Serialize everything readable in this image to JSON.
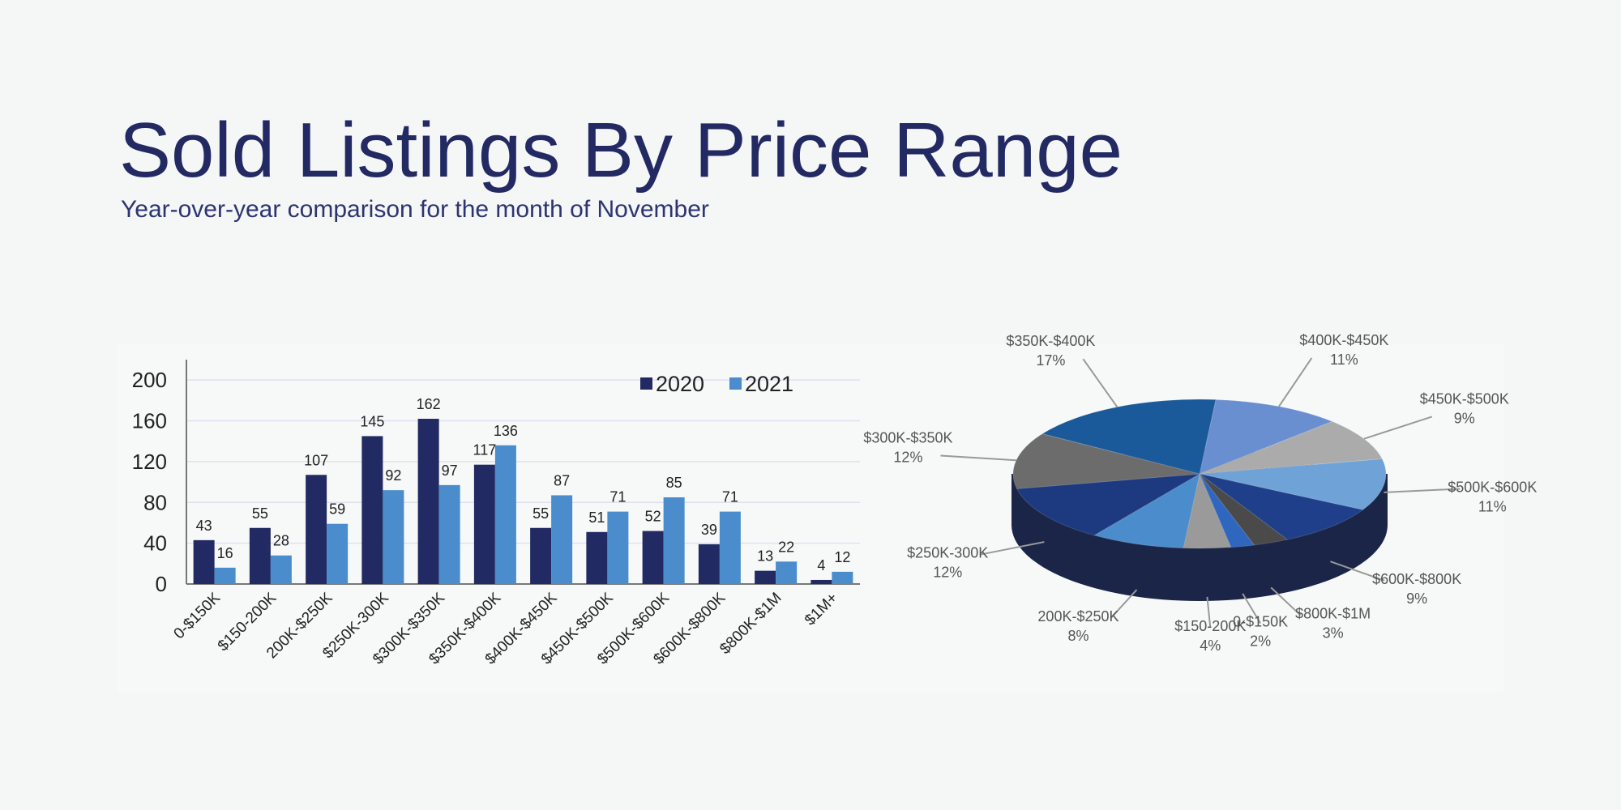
{
  "title": "Sold Listings By Price Range",
  "subtitle": "Year-over-year comparison for the month of November",
  "chart_data": [
    {
      "type": "bar",
      "categories": [
        "0-$150K",
        "$150-200K",
        "200K-$250K",
        "$250K-300K",
        "$300K-$350K",
        "$350K-$400K",
        "$400K-$450K",
        "$450K-$500K",
        "$500K-$600K",
        "$600K-$800K",
        "$800K-$1M",
        "$1M+"
      ],
      "series": [
        {
          "name": "2020",
          "color": "#222a63",
          "values": [
            43,
            55,
            107,
            145,
            162,
            117,
            55,
            51,
            52,
            39,
            13,
            4
          ]
        },
        {
          "name": "2021",
          "color": "#4a8ccc",
          "values": [
            16,
            28,
            59,
            92,
            97,
            136,
            87,
            71,
            85,
            71,
            22,
            12
          ]
        }
      ],
      "ylim": [
        0,
        220
      ],
      "yticks": [
        0,
        40,
        80,
        120,
        160,
        200
      ],
      "grid": true,
      "legend": "top-right"
    },
    {
      "type": "pie",
      "labels": [
        "$400K-$450K",
        "$450K-$500K",
        "$500K-$600K",
        "$600K-$800K",
        "$800K-$1M",
        "0-$150K",
        "$150-200K",
        "200K-$250K",
        "$250K-300K",
        "$300K-$350K",
        "$350K-$400K"
      ],
      "values": [
        11,
        9,
        11,
        9,
        3,
        2,
        4,
        8,
        12,
        12,
        17
      ],
      "value_labels": [
        "11%",
        "9%",
        "11%",
        "9%",
        "3%",
        "2%",
        "4%",
        "8%",
        "12%",
        "12%",
        "17%"
      ],
      "colors": [
        "#6a8fd0",
        "#ababab",
        "#6fa3d8",
        "#1f3f8a",
        "#4a4a4a",
        "#2f66c0",
        "#9a9a9a",
        "#4a8ccc",
        "#1d3a80",
        "#6c6c6c",
        "#1a5a9a"
      ]
    }
  ]
}
